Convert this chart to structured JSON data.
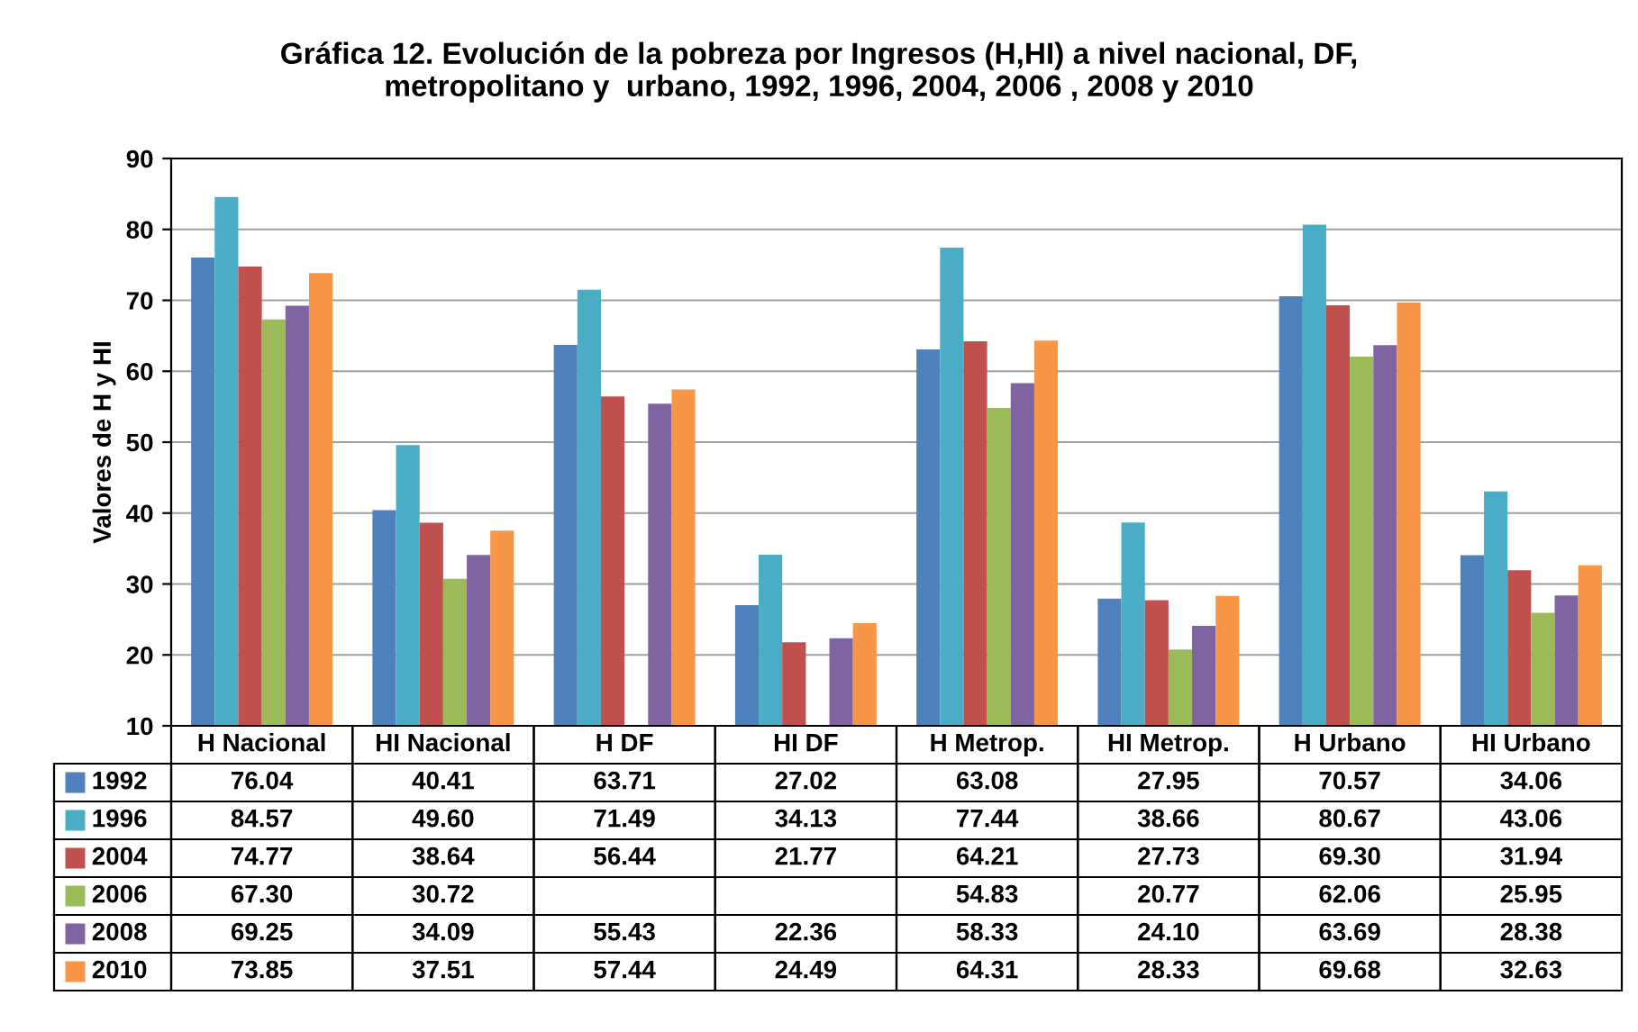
{
  "chart_data": {
    "type": "bar",
    "title": "Gráfica 12. Evolución de la pobreza por Ingresos (H,HI) a nivel nacional, DF,\nmetropolitano y  urbano, 1992, 1996, 2004, 2006 , 2008 y 2010",
    "ylabel": "Valores de H y HI",
    "categories": [
      "H Nacional",
      "HI Nacional",
      "H DF",
      "HI DF",
      "H Metrop.",
      "HI Metrop.",
      "H Urbano",
      "HI Urbano"
    ],
    "series": [
      {
        "name": "1992",
        "color": "#4f81bd",
        "values": [
          76.04,
          40.41,
          63.71,
          27.02,
          63.08,
          27.95,
          70.57,
          34.06
        ]
      },
      {
        "name": "1996",
        "color": "#4bacc6",
        "values": [
          84.57,
          49.6,
          71.49,
          34.13,
          77.44,
          38.66,
          80.67,
          43.06
        ]
      },
      {
        "name": "2004",
        "color": "#c0504d",
        "values": [
          74.77,
          38.64,
          56.44,
          21.77,
          64.21,
          27.73,
          69.3,
          31.94
        ]
      },
      {
        "name": "2006",
        "color": "#9bbb59",
        "values": [
          67.3,
          30.72,
          null,
          null,
          54.83,
          20.77,
          62.06,
          25.95
        ]
      },
      {
        "name": "2008",
        "color": "#8064a2",
        "values": [
          69.25,
          34.09,
          55.43,
          22.36,
          58.33,
          24.1,
          63.69,
          28.38
        ]
      },
      {
        "name": "2010",
        "color": "#f79646",
        "values": [
          73.85,
          37.51,
          57.44,
          24.49,
          64.31,
          28.33,
          69.68,
          32.63
        ]
      }
    ],
    "value_labels": [
      [
        "76.04",
        "40.41",
        "63.71",
        "27.02",
        "63.08",
        "27.95",
        "70.57",
        "34.06"
      ],
      [
        "84.57",
        "49.60",
        "71.49",
        "34.13",
        "77.44",
        "38.66",
        "80.67",
        "43.06"
      ],
      [
        "74.77",
        "38.64",
        "56.44",
        "21.77",
        "64.21",
        "27.73",
        "69.30",
        "31.94"
      ],
      [
        "67.30",
        "30.72",
        null,
        null,
        "54.83",
        "20.77",
        "62.06",
        "25.95"
      ],
      [
        "69.25",
        "34.09",
        "55.43",
        "22.36",
        "58.33",
        "24.10",
        "63.69",
        "28.38"
      ],
      [
        "73.85",
        "37.51",
        "57.44",
        "24.49",
        "64.31",
        "28.33",
        "69.68",
        "32.63"
      ]
    ],
    "ylim": [
      10,
      90
    ],
    "yticks": [
      10,
      20,
      30,
      40,
      50,
      60,
      70,
      80,
      90
    ],
    "grid": "y",
    "legend": "bottom"
  }
}
